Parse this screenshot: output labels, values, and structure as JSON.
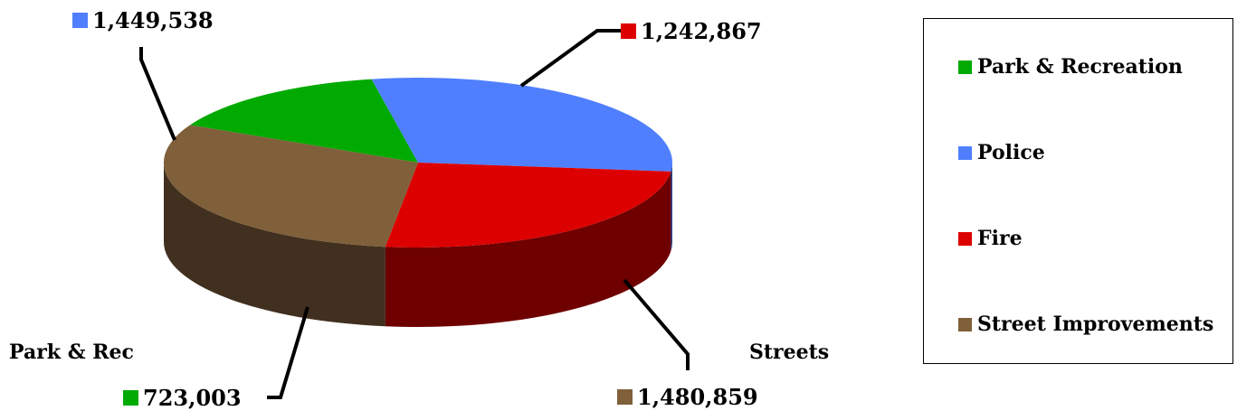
{
  "chart_data": {
    "type": "pie",
    "style": "3d",
    "legend_position": "right",
    "slices": [
      {
        "label": "Park & Recreation",
        "callout": "Park & Rec",
        "value": 723003,
        "value_text": "723,003",
        "color": "#00AA00",
        "side_color": "#005500"
      },
      {
        "label": "Police",
        "callout": "",
        "value": 1449538,
        "value_text": "1,449,538",
        "color": "#4F7FFF",
        "side_color": "#27408B"
      },
      {
        "label": "Fire",
        "callout": "",
        "value": 1242867,
        "value_text": "1,242,867",
        "color": "#DD0000",
        "side_color": "#6F0000"
      },
      {
        "label": "Street Improvements",
        "callout": "Streets",
        "value": 1480859,
        "value_text": "1,480,859",
        "color": "#7F603A",
        "side_color": "#41301F"
      }
    ]
  }
}
